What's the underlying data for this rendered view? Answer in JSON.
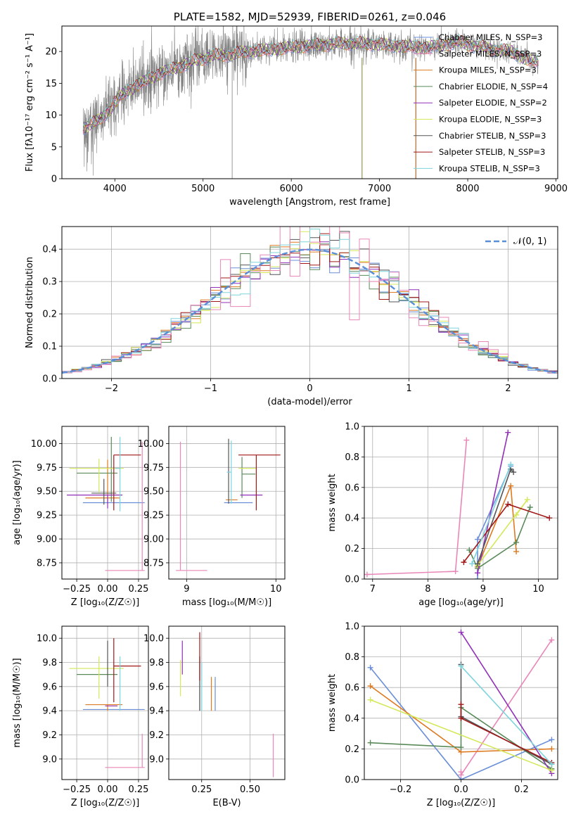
{
  "colors": [
    "#6a8fd8",
    "#e887b8",
    "#de7a22",
    "#5a8a5a",
    "#9130b8",
    "#d4e85a",
    "#555555",
    "#a01818",
    "#7ed4dc"
  ],
  "chart_data": [
    {
      "id": "spectrum",
      "type": "line",
      "title": "PLATE=1582, MJD=52939, FIBERID=0261, z=0.046",
      "xlabel": "wavelength [Angstrom, rest frame]",
      "ylabel": "Flux [fλ10⁻¹⁷ erg cm⁻² s⁻¹ A⁻¹]",
      "xlim": [
        3400,
        9020
      ],
      "ylim": [
        0,
        24
      ],
      "xticks": [
        4000,
        5000,
        6000,
        7000,
        8000,
        9000
      ],
      "yticks": [
        0,
        5,
        10,
        15,
        20
      ],
      "grid": false,
      "legend_position": "top-right",
      "legend": [
        "Chabrier MILES, N_SSP=3",
        "Salpeter MILES, N_SSP=3",
        "Kroupa MILES, N_SSP=3",
        "Chabrier ELODIE, N_SSP=4",
        "Salpeter ELODIE, N_SSP=2",
        "Kroupa ELODIE, N_SSP=3",
        "Chabrier STELIB, N_SSP=3",
        "Salpeter STELIB, N_SSP=3",
        "Kroupa STELIB, N_SSP=3"
      ],
      "continuum": {
        "x": [
          3650,
          3800,
          3950,
          4100,
          4300,
          4500,
          4700,
          4900,
          5100,
          5300,
          5500,
          5700,
          5900,
          6100,
          6300,
          6500,
          6700,
          6900,
          7100,
          7300,
          7500,
          7700,
          7900,
          8100,
          8300,
          8500,
          8700,
          8800
        ],
        "y": [
          8,
          9,
          11,
          13.5,
          15,
          16.5,
          17.5,
          18.5,
          19.3,
          19.5,
          20,
          20.2,
          20.5,
          20.8,
          21,
          21.2,
          21.3,
          21.2,
          21,
          20.8,
          20.6,
          21,
          21.5,
          20.8,
          20.3,
          20,
          18.5,
          18.5
        ]
      }
    },
    {
      "id": "residuals",
      "type": "histogram",
      "xlabel": "(data-model)/error",
      "ylabel": "Normed distribution",
      "xlim": [
        -2.5,
        2.5
      ],
      "ylim": [
        0,
        0.47
      ],
      "xticks": [
        -2,
        -1,
        0,
        1,
        2
      ],
      "yticks": [
        0.0,
        0.1,
        0.2,
        0.3,
        0.4
      ],
      "grid": true,
      "legend_position": "top-right",
      "reference_curve": {
        "name": "𝒩(0, 1)",
        "color": "#5a8fd8",
        "style": "dashed"
      }
    },
    {
      "id": "age_vs_Z",
      "type": "errorbar",
      "xlabel": "Z [log₁₀(Z/Z☉)]",
      "ylabel": "age  [log₁₀(age/yr)]",
      "xlim": [
        -0.37,
        0.33
      ],
      "ylim": [
        8.58,
        10.18
      ],
      "xticks": [
        -0.25,
        0.0,
        0.25
      ],
      "yticks": [
        8.75,
        9.0,
        9.25,
        9.5,
        9.75,
        10.0
      ],
      "grid": true,
      "points": [
        {
          "x": 0.08,
          "y": 9.38,
          "xerr": [
            0.28,
            0.22
          ],
          "yerr": [
            0.0,
            0.0
          ]
        },
        {
          "x": 0.28,
          "y": 8.67,
          "xerr": [
            0.3,
            0.02
          ],
          "yerr": [
            0.0,
            1.35
          ]
        },
        {
          "x": 0.0,
          "y": 9.43,
          "xerr": [
            0.18,
            0.1
          ],
          "yerr": [
            0.06,
            0.4
          ]
        },
        {
          "x": 0.03,
          "y": 9.69,
          "xerr": [
            0.28,
            0.05
          ],
          "yerr": [
            0.3,
            0.38
          ]
        },
        {
          "x": 0.0,
          "y": 9.46,
          "xerr": [
            0.33,
            0.12
          ],
          "yerr": [
            0.14,
            0.0
          ]
        },
        {
          "x": -0.07,
          "y": 9.74,
          "xerr": [
            0.24,
            0.2
          ],
          "yerr": [
            0.25,
            0.1
          ]
        },
        {
          "x": -0.03,
          "y": 9.48,
          "xerr": [
            0.1,
            0.1
          ],
          "yerr": [
            0.12,
            0.15
          ]
        },
        {
          "x": 0.05,
          "y": 9.88,
          "xerr": [
            0.0,
            0.22
          ],
          "yerr": [
            0.58,
            0.0
          ]
        },
        {
          "x": 0.1,
          "y": 9.74,
          "xerr": [
            0.04,
            0.0
          ],
          "yerr": [
            0.45,
            0.33
          ]
        }
      ]
    },
    {
      "id": "age_vs_mass",
      "type": "errorbar",
      "xlabel": "mass [log₁₀(M/M☉)]",
      "ylabel": "",
      "xlim": [
        8.8,
        10.1
      ],
      "ylim": [
        8.58,
        10.18
      ],
      "xticks": [
        9,
        10
      ],
      "yticks": [
        8.75,
        9.0,
        9.25,
        9.5,
        9.75,
        10.0
      ],
      "grid": true,
      "points": [
        {
          "x": 9.42,
          "y": 9.38,
          "xerr": [
            0.0,
            0.32
          ],
          "yerr": [
            0.0,
            0.0
          ]
        },
        {
          "x": 8.93,
          "y": 8.67,
          "xerr": [
            0.05,
            0.3
          ],
          "yerr": [
            0.0,
            1.35
          ]
        },
        {
          "x": 9.47,
          "y": 9.41,
          "xerr": [
            0.03,
            0.1
          ],
          "yerr": [
            0.0,
            0.0
          ]
        },
        {
          "x": 9.62,
          "y": 9.68,
          "xerr": [
            0.0,
            0.15
          ],
          "yerr": [
            0.25,
            0.18
          ]
        },
        {
          "x": 9.6,
          "y": 9.46,
          "xerr": [
            0.0,
            0.25
          ],
          "yerr": [
            0.0,
            0.0
          ]
        },
        {
          "x": 9.68,
          "y": 9.74,
          "xerr": [
            0.1,
            0.1
          ],
          "yerr": [
            0.0,
            0.0
          ]
        },
        {
          "x": 9.47,
          "y": 9.72,
          "xerr": [
            0.0,
            0.0
          ],
          "yerr": [
            0.35,
            0.33
          ]
        },
        {
          "x": 9.78,
          "y": 9.88,
          "xerr": [
            0.2,
            0.27
          ],
          "yerr": [
            0.58,
            0.0
          ]
        },
        {
          "x": 9.5,
          "y": 9.7,
          "xerr": [
            0.05,
            0.0
          ],
          "yerr": [
            0.33,
            0.33
          ]
        }
      ]
    },
    {
      "id": "massweight_vs_age",
      "type": "line",
      "xlabel": "age  [log₁₀(age/yr)]",
      "ylabel": "mass weight",
      "xlim": [
        6.85,
        10.35
      ],
      "ylim": [
        0,
        1
      ],
      "xticks": [
        7,
        8,
        9,
        10
      ],
      "yticks": [
        0.0,
        0.2,
        0.4,
        0.6,
        0.8,
        1.0
      ],
      "grid": true,
      "series": [
        {
          "x": [
            8.9,
            8.9,
            9.5
          ],
          "y": [
            0.0,
            0.26,
            0.74
          ]
        },
        {
          "x": [
            6.9,
            8.5,
            8.7
          ],
          "y": [
            0.03,
            0.05,
            0.91
          ]
        },
        {
          "x": [
            8.9,
            9.5,
            9.6
          ],
          "y": [
            0.08,
            0.61,
            0.18
          ]
        },
        {
          "x": [
            8.75,
            8.9,
            9.6,
            9.85
          ],
          "y": [
            0.19,
            0.07,
            0.24,
            0.47
          ]
        },
        {
          "x": [
            8.9,
            9.45
          ],
          "y": [
            0.04,
            0.96
          ]
        },
        {
          "x": [
            8.9,
            9.8,
            9.6
          ],
          "y": [
            0.09,
            0.52,
            0.42
          ]
        },
        {
          "x": [
            8.9,
            9.5,
            9.55
          ],
          "y": [
            0.1,
            0.72,
            0.7
          ]
        },
        {
          "x": [
            8.65,
            9.45,
            10.2
          ],
          "y": [
            0.11,
            0.49,
            0.4
          ]
        },
        {
          "x": [
            8.8,
            9.5
          ],
          "y": [
            0.1,
            0.75
          ]
        }
      ]
    },
    {
      "id": "mass_vs_Z",
      "type": "errorbar",
      "xlabel": "Z [log₁₀(Z/Z☉)]",
      "ylabel": "mass [log₁₀(M/M☉)]",
      "xlim": [
        -0.37,
        0.33
      ],
      "ylim": [
        8.83,
        10.1
      ],
      "xticks": [
        -0.25,
        0.0,
        0.25
      ],
      "yticks": [
        9.0,
        9.2,
        9.4,
        9.6,
        9.8,
        10.0
      ],
      "grid": true,
      "points": [
        {
          "x": 0.08,
          "y": 9.41,
          "xerr": [
            0.28,
            0.22
          ],
          "yerr": [
            0.0,
            0.0
          ]
        },
        {
          "x": 0.28,
          "y": 8.93,
          "xerr": [
            0.3,
            0.02
          ],
          "yerr": [
            0.0,
            0.28
          ]
        },
        {
          "x": 0.0,
          "y": 9.45,
          "xerr": [
            0.18,
            0.12
          ],
          "yerr": [
            0.05,
            0.0
          ]
        },
        {
          "x": 0.03,
          "y": 9.7,
          "xerr": [
            0.28,
            0.05
          ],
          "yerr": [
            0.0,
            0.0
          ]
        },
        {
          "x": -0.02,
          "y": 9.44,
          "xerr": [
            0.0,
            0.1
          ],
          "yerr": [
            0.0,
            0.0
          ]
        },
        {
          "x": -0.07,
          "y": 9.75,
          "xerr": [
            0.24,
            0.2
          ],
          "yerr": [
            0.25,
            0.1
          ]
        },
        {
          "x": 0.0,
          "y": 9.72,
          "xerr": [
            0.0,
            0.0
          ],
          "yerr": [
            0.12,
            0.26
          ]
        },
        {
          "x": 0.05,
          "y": 9.77,
          "xerr": [
            0.0,
            0.22
          ],
          "yerr": [
            0.3,
            0.23
          ]
        },
        {
          "x": 0.1,
          "y": 9.6,
          "xerr": [
            0.0,
            0.0
          ],
          "yerr": [
            0.2,
            0.25
          ]
        }
      ]
    },
    {
      "id": "mass_vs_ebv",
      "type": "errorbar",
      "xlabel": "E(B-V)",
      "ylabel": "",
      "xlim": [
        0.08,
        0.68
      ],
      "ylim": [
        8.83,
        10.1
      ],
      "xticks": [
        0.25,
        0.5
      ],
      "yticks": [
        9.0,
        9.2,
        9.4,
        9.6,
        9.8,
        10.0
      ],
      "grid": true,
      "points": [
        {
          "x": 0.32,
          "y": 9.5,
          "xerr": [
            0.0,
            0.0
          ],
          "yerr": [
            0.1,
            0.18
          ]
        },
        {
          "x": 0.62,
          "y": 9.05,
          "xerr": [
            0.0,
            0.0
          ],
          "yerr": [
            0.2,
            0.16
          ]
        },
        {
          "x": 0.3,
          "y": 9.5,
          "xerr": [
            0.0,
            0.0
          ],
          "yerr": [
            0.1,
            0.18
          ]
        },
        {
          "x": 0.24,
          "y": 9.65,
          "xerr": [
            0.0,
            0.0
          ],
          "yerr": [
            0.25,
            0.2
          ]
        },
        {
          "x": 0.15,
          "y": 9.8,
          "xerr": [
            0.0,
            0.0
          ],
          "yerr": [
            0.1,
            0.18
          ]
        },
        {
          "x": 0.14,
          "y": 9.67,
          "xerr": [
            0.0,
            0.0
          ],
          "yerr": [
            0.15,
            0.15
          ]
        },
        {
          "x": 0.24,
          "y": 9.6,
          "xerr": [
            0.0,
            0.0
          ],
          "yerr": [
            0.2,
            0.25
          ]
        },
        {
          "x": 0.24,
          "y": 9.8,
          "xerr": [
            0.0,
            0.0
          ],
          "yerr": [
            0.15,
            0.25
          ]
        },
        {
          "x": 0.25,
          "y": 9.55,
          "xerr": [
            0.0,
            0.0
          ],
          "yerr": [
            0.15,
            0.25
          ]
        }
      ]
    },
    {
      "id": "massweight_vs_Z",
      "type": "line",
      "xlabel": "Z [log₁₀(Z/Z☉)]",
      "ylabel": "mass weight",
      "xlim": [
        -0.32,
        0.32
      ],
      "ylim": [
        0,
        1
      ],
      "xticks": [
        -0.2,
        0.0,
        0.2
      ],
      "yticks": [
        0.0,
        0.2,
        0.4,
        0.6,
        0.8,
        1.0
      ],
      "grid": true,
      "series": [
        {
          "x": [
            -0.3,
            0.0,
            0.3
          ],
          "y": [
            0.73,
            0.0,
            0.26
          ]
        },
        {
          "x": [
            0.0,
            0.0,
            0.3
          ],
          "y": [
            0.05,
            0.03,
            0.91
          ]
        },
        {
          "x": [
            -0.3,
            0.0,
            0.3
          ],
          "y": [
            0.61,
            0.18,
            0.2
          ]
        },
        {
          "x": [
            -0.3,
            0.0,
            0.0,
            0.3
          ],
          "y": [
            0.24,
            0.21,
            0.47,
            0.07
          ]
        },
        {
          "x": [
            0.0,
            0.3
          ],
          "y": [
            0.96,
            0.04
          ]
        },
        {
          "x": [
            -0.3,
            0.3
          ],
          "y": [
            0.52,
            0.06
          ]
        },
        {
          "x": [
            0.0,
            0.0,
            0.3
          ],
          "y": [
            0.75,
            0.41,
            0.1
          ]
        },
        {
          "x": [
            0.0,
            0.0,
            0.3
          ],
          "y": [
            0.49,
            0.4,
            0.11
          ]
        },
        {
          "x": [
            0.0,
            0.3
          ],
          "y": [
            0.74,
            0.1
          ]
        }
      ]
    }
  ]
}
